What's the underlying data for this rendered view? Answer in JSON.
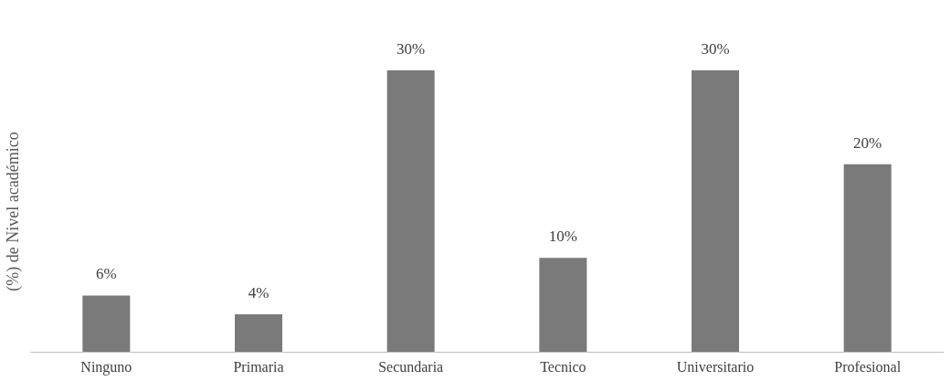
{
  "chart_data": {
    "type": "bar",
    "ylabel": "(%) de Nivel académico",
    "categories": [
      "Ninguno",
      "Primaria",
      "Secundaria",
      "Tecnico",
      "Universitario",
      "Profesional"
    ],
    "values": [
      6,
      4,
      30,
      10,
      30,
      20
    ],
    "value_labels": [
      "6%",
      "4%",
      "30%",
      "10%",
      "30%",
      "20%"
    ],
    "color": "#7a7a7a",
    "grid": false
  }
}
